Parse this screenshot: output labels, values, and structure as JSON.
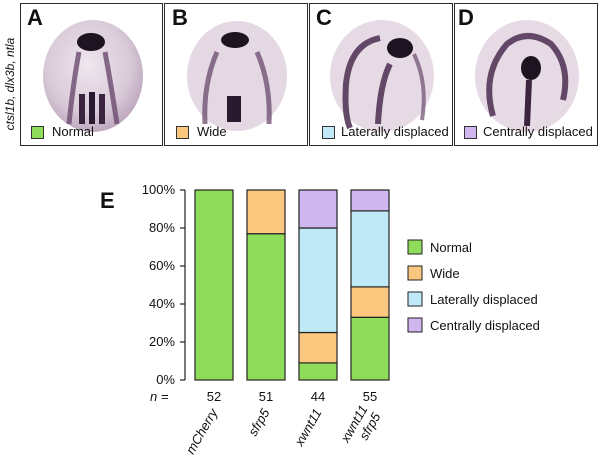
{
  "figure": {
    "side_label": "ctsl1b, dlx3b, ntla",
    "panels": [
      {
        "letter": "A",
        "label": "Normal",
        "color": "#8fdc5a"
      },
      {
        "letter": "B",
        "label": "Wide",
        "color": "#f9c77e"
      },
      {
        "letter": "C",
        "label": "Laterally displaced",
        "color": "#bfe9f6"
      },
      {
        "letter": "D",
        "label": "Centrally displaced",
        "color": "#cfb6ef"
      }
    ],
    "chart_letter": "E",
    "n_label": "n ="
  },
  "chart_data": {
    "type": "bar",
    "stacked": true,
    "categories": [
      "mCherry",
      "sfrp5",
      "xwnt11",
      "xwnt11 sfrp5"
    ],
    "n_values": [
      "52",
      "51",
      "44",
      "55"
    ],
    "series": [
      {
        "name": "Normal",
        "color": "#8fdc5a",
        "values": [
          100,
          77,
          9,
          33
        ]
      },
      {
        "name": "Wide",
        "color": "#f9c77e",
        "values": [
          0,
          23,
          16,
          16
        ]
      },
      {
        "name": "Laterally displaced",
        "color": "#bfe9f6",
        "values": [
          0,
          0,
          55,
          40
        ]
      },
      {
        "name": "Centrally displaced",
        "color": "#cfb6ef",
        "values": [
          0,
          0,
          20,
          11
        ]
      }
    ],
    "y_ticks": [
      "0%",
      "20%",
      "40%",
      "60%",
      "80%",
      "100%"
    ],
    "ylim": [
      0,
      100
    ],
    "grid": false,
    "legend_position": "right"
  }
}
